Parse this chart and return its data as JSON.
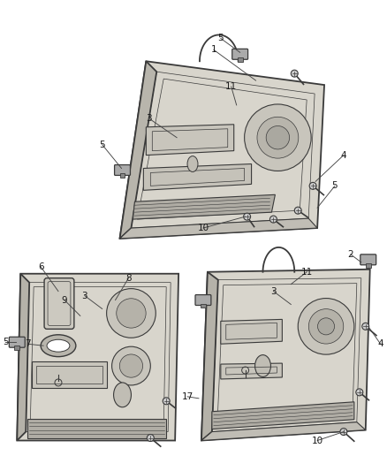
{
  "bg_color": "#ffffff",
  "line_color": "#3a3a3a",
  "label_color": "#1a1a1a",
  "fig_width": 4.38,
  "fig_height": 5.33,
  "dpi": 100
}
